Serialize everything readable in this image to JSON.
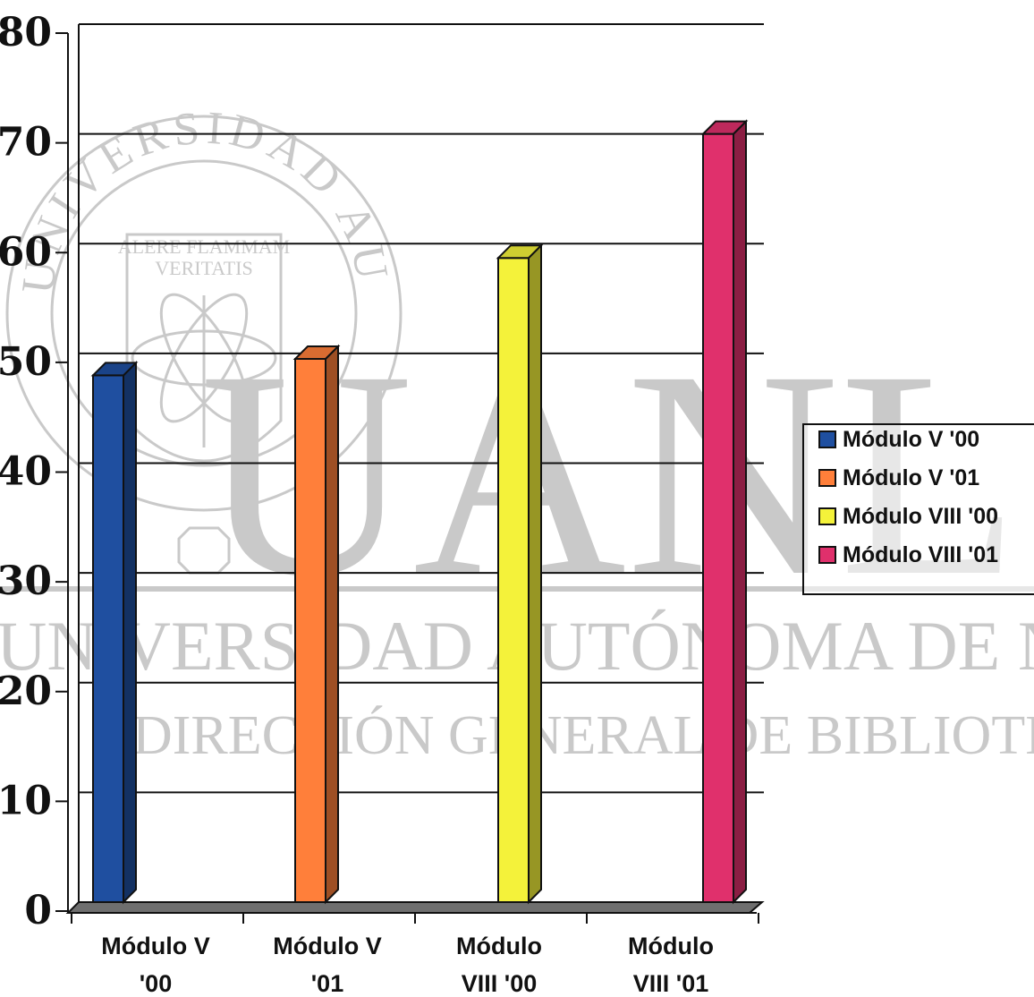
{
  "chart_data": {
    "type": "bar",
    "categories": [
      "Módulo V '00",
      "Módulo V '01",
      "Módulo VIII '00",
      "Módulo VIII '01"
    ],
    "category_label_lines": [
      [
        "Módulo V",
        "'00"
      ],
      [
        "Módulo V",
        "'01"
      ],
      [
        "Módulo",
        "VIII '00"
      ],
      [
        "Módulo",
        "VIII '01"
      ]
    ],
    "series": [
      {
        "name": "Módulo V '00",
        "color": "#1f4fa0",
        "category": 0,
        "value": 48
      },
      {
        "name": "Módulo V '01",
        "color": "#ff7f3a",
        "category": 1,
        "value": 49.5
      },
      {
        "name": "Módulo VIII '00",
        "color": "#f4f23a",
        "category": 2,
        "value": 58.7
      },
      {
        "name": "Módulo VIII '01",
        "color": "#e0306c",
        "category": 3,
        "value": 70
      }
    ],
    "ylim": [
      0,
      80
    ],
    "yticks": [
      0,
      10,
      20,
      30,
      40,
      50,
      60,
      70,
      80
    ],
    "grid": true,
    "legend_position": "right",
    "title": "",
    "xlabel": "",
    "ylabel": ""
  },
  "watermark": {
    "seal_top_text": "UNIVERSIDAD AUTONOMA DE NUEVO LEON",
    "seal_motto_1": "ALERE FLAMMAM",
    "seal_motto_2": "VERITATIS",
    "logo_letters": "UANL",
    "university_line": "UNIVERSIDAD AUTÓNOMA DE NUEVO LEÓN",
    "library_line": "DIRECCIÓN GENERAL DE BIBLIOTECAS"
  }
}
